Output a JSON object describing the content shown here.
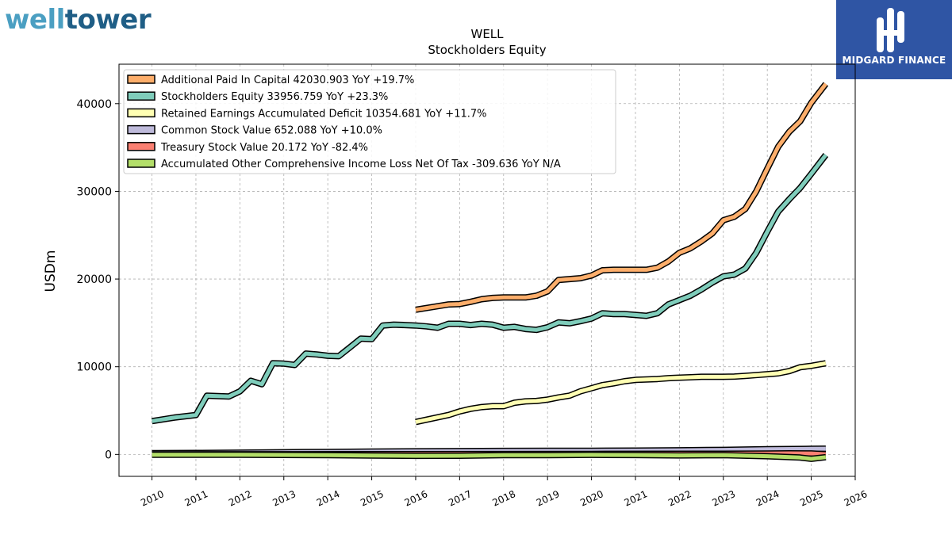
{
  "branding": {
    "left_logo": {
      "part1": "well",
      "part2": "tower"
    },
    "right_logo": {
      "label": "MIDGARD FINANCE",
      "color": "#2f55a4"
    }
  },
  "chart_data": {
    "type": "line",
    "title": "WELL",
    "subtitle": "Stockholders  Equity",
    "ylabel": "USDm",
    "xlabel": "",
    "xlim": [
      2009.25,
      2026
    ],
    "ylim": [
      -2500,
      44500
    ],
    "x_ticks": [
      2010,
      2011,
      2012,
      2013,
      2014,
      2015,
      2016,
      2017,
      2018,
      2019,
      2020,
      2021,
      2022,
      2023,
      2024,
      2025,
      2026
    ],
    "y_ticks": [
      0,
      10000,
      20000,
      30000,
      40000
    ],
    "grid": true,
    "legend_position": "top-left",
    "series": [
      {
        "name": "Additional Paid In Capital  42030.903 YoY +19.7%",
        "color": "#fdae6b",
        "x": [
          2016.0,
          2016.75,
          2017.0,
          2017.25,
          2017.5,
          2017.75,
          2018.0,
          2018.25,
          2018.5,
          2018.75,
          2019.0,
          2019.25,
          2019.5,
          2019.75,
          2020.0,
          2020.25,
          2020.5,
          2020.75,
          2021.0,
          2021.25,
          2021.5,
          2021.75,
          2022.0,
          2022.25,
          2022.5,
          2022.75,
          2023.0,
          2023.25,
          2023.5,
          2023.75,
          2024.0,
          2024.25,
          2024.5,
          2024.75,
          2025.0,
          2025.33
        ],
        "y": [
          16500,
          17100,
          17150,
          17400,
          17700,
          17850,
          17900,
          17900,
          17900,
          18100,
          18600,
          19900,
          20000,
          20100,
          20400,
          21000,
          21050,
          21050,
          21050,
          21050,
          21300,
          22000,
          23000,
          23500,
          24300,
          25200,
          26700,
          27100,
          28000,
          30000,
          32600,
          35100,
          36800,
          38000,
          40100,
          42250
        ]
      },
      {
        "name": "Stockholders Equity  33956.759 YoY +23.3%",
        "color": "#7fcdbb",
        "x": [
          2010.0,
          2010.5,
          2011.0,
          2011.25,
          2011.5,
          2011.75,
          2012.0,
          2012.25,
          2012.5,
          2012.75,
          2013.0,
          2013.25,
          2013.5,
          2013.75,
          2014.0,
          2014.25,
          2014.5,
          2014.75,
          2015.0,
          2015.25,
          2015.5,
          2015.75,
          2016.0,
          2016.25,
          2016.5,
          2016.75,
          2017.0,
          2017.25,
          2017.5,
          2017.75,
          2018.0,
          2018.25,
          2018.5,
          2018.75,
          2019.0,
          2019.25,
          2019.5,
          2019.75,
          2020.0,
          2020.25,
          2020.5,
          2020.75,
          2021.0,
          2021.25,
          2021.5,
          2021.75,
          2022.0,
          2022.25,
          2022.5,
          2022.75,
          2023.0,
          2023.25,
          2023.5,
          2023.75,
          2024.0,
          2024.25,
          2024.5,
          2024.75,
          2025.0,
          2025.33
        ],
        "y": [
          3800,
          4200,
          4500,
          6700,
          6650,
          6600,
          7200,
          8400,
          8000,
          10400,
          10350,
          10200,
          11500,
          11400,
          11250,
          11200,
          12200,
          13200,
          13150,
          14700,
          14800,
          14750,
          14700,
          14600,
          14450,
          14900,
          14900,
          14750,
          14900,
          14800,
          14450,
          14550,
          14300,
          14200,
          14500,
          15050,
          14950,
          15200,
          15500,
          16100,
          16000,
          16000,
          15900,
          15800,
          16100,
          17100,
          17600,
          18100,
          18800,
          19600,
          20300,
          20500,
          21200,
          23000,
          25400,
          27700,
          29100,
          30400,
          32000,
          34150
        ]
      },
      {
        "name": "Retained Earnings Accumulated Deficit  10354.681 YoY +11.7%",
        "color": "#ffffb3",
        "x": [
          2016.0,
          2016.75,
          2017.0,
          2017.25,
          2017.5,
          2017.75,
          2018.0,
          2018.25,
          2018.5,
          2018.75,
          2019.0,
          2019.25,
          2019.5,
          2019.75,
          2020.0,
          2020.25,
          2020.5,
          2020.75,
          2021.0,
          2021.25,
          2021.5,
          2021.75,
          2022.0,
          2022.25,
          2022.5,
          2022.75,
          2023.0,
          2023.25,
          2023.5,
          2023.75,
          2024.0,
          2024.25,
          2024.5,
          2024.75,
          2025.0,
          2025.33
        ],
        "y": [
          3700,
          4500,
          4900,
          5200,
          5400,
          5500,
          5500,
          5900,
          6050,
          6100,
          6250,
          6500,
          6700,
          7200,
          7550,
          7900,
          8100,
          8350,
          8500,
          8550,
          8600,
          8700,
          8750,
          8800,
          8850,
          8850,
          8850,
          8880,
          8950,
          9050,
          9150,
          9250,
          9500,
          9950,
          10100,
          10400
        ]
      },
      {
        "name": "Common Stock Value  652.088 YoY +10.0%",
        "color": "#bebada",
        "x": [
          2010.0,
          2011.0,
          2012.0,
          2013.0,
          2014.0,
          2015.0,
          2016.0,
          2017.0,
          2018.0,
          2019.0,
          2020.0,
          2021.0,
          2022.0,
          2023.0,
          2024.0,
          2025.0,
          2025.33
        ],
        "y": [
          150,
          170,
          200,
          250,
          280,
          320,
          360,
          380,
          400,
          410,
          420,
          440,
          470,
          520,
          600,
          640,
          652
        ]
      },
      {
        "name": "Treasury Stock Value  20.172 YoY -82.4%",
        "color": "#fb8072",
        "x": [
          2010.0,
          2015.0,
          2020.0,
          2023.0,
          2024.0,
          2024.5,
          2025.0,
          2025.33
        ],
        "y": [
          10,
          30,
          60,
          80,
          100,
          120,
          110,
          20
        ]
      },
      {
        "name": "Accumulated Other Comprehensive Income Loss Net Of Tax  -309.636 YoY N/A",
        "color": "#b3de69",
        "x": [
          2010.0,
          2012.0,
          2013.0,
          2014.0,
          2015.0,
          2016.0,
          2017.0,
          2018.0,
          2019.0,
          2020.0,
          2021.0,
          2022.0,
          2023.0,
          2024.0,
          2024.75,
          2025.0,
          2025.33
        ],
        "y": [
          -30,
          -30,
          -60,
          -80,
          -130,
          -160,
          -150,
          -90,
          -90,
          -50,
          -70,
          -110,
          -90,
          -200,
          -360,
          -500,
          -310
        ]
      }
    ]
  }
}
